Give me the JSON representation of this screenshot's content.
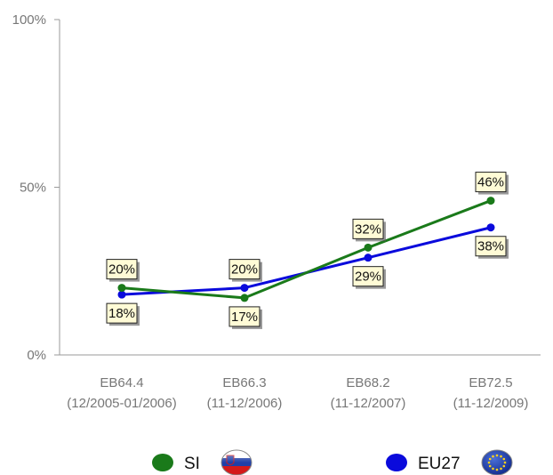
{
  "chart_data": {
    "type": "line",
    "title": "",
    "xlabel": "",
    "ylabel": "",
    "ylim": [
      0,
      100
    ],
    "y_ticks": [
      "0%",
      "50%",
      "100%"
    ],
    "grid": false,
    "legend_position": "bottom",
    "categories": [
      {
        "code": "EB64.4",
        "period": "(12/2005-01/2006)"
      },
      {
        "code": "EB66.3",
        "period": "(11-12/2006)"
      },
      {
        "code": "EB68.2",
        "period": "(11-12/2007)"
      },
      {
        "code": "EB72.5",
        "period": "(11-12/2009)"
      }
    ],
    "series": [
      {
        "name": "SI",
        "color": "#1a7a1a",
        "values": [
          20,
          17,
          32,
          46
        ],
        "labels": [
          "20%",
          "17%",
          "32%",
          "46%"
        ],
        "flag": "slovenia-flag-icon"
      },
      {
        "name": "EU27",
        "color": "#0a0adc",
        "values": [
          18,
          20,
          29,
          38
        ],
        "labels": [
          "18%",
          "20%",
          "29%",
          "38%"
        ],
        "flag": "eu-flag-icon"
      }
    ],
    "label_style": {
      "fill": "#fffbd6",
      "stroke": "#222222"
    }
  }
}
